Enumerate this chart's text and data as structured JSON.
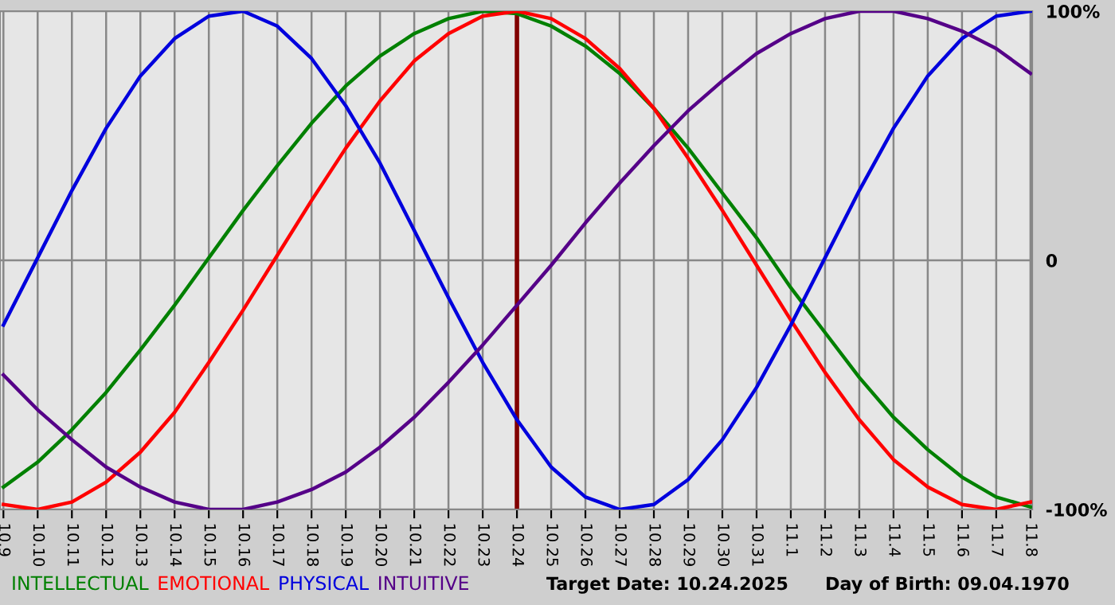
{
  "chart_data": {
    "type": "line",
    "categories": [
      "10.9",
      "10.10",
      "10.11",
      "10.12",
      "10.13",
      "10.14",
      "10.15",
      "10.16",
      "10.17",
      "10.18",
      "10.19",
      "10.20",
      "10.21",
      "10.22",
      "10.23",
      "10.24",
      "10.25",
      "10.26",
      "10.27",
      "10.28",
      "10.29",
      "10.30",
      "10.31",
      "11.1",
      "11.2",
      "11.3",
      "11.4",
      "11.5",
      "11.6",
      "11.7",
      "11.8"
    ],
    "series": [
      {
        "name": "INTELLECTUAL",
        "color": "#008000",
        "values": [
          -91,
          -81,
          -68,
          -53,
          -36,
          -18,
          1,
          20,
          38,
          55,
          70,
          82,
          91,
          97,
          100,
          99,
          94,
          86,
          75,
          61,
          45,
          27,
          9,
          -11,
          -29,
          -47,
          -63,
          -76,
          -87,
          -95,
          -99
        ]
      },
      {
        "name": "EMOTIONAL",
        "color": "#ff0000",
        "values": [
          -98,
          -100,
          -97,
          -89,
          -77,
          -61,
          -41,
          -20,
          2,
          24,
          45,
          64,
          80,
          91,
          98,
          100,
          97,
          89,
          77,
          61,
          41,
          20,
          -2,
          -24,
          -45,
          -64,
          -80,
          -91,
          -98,
          -100,
          -97
        ]
      },
      {
        "name": "PHYSICAL",
        "color": "#0000dd",
        "values": [
          -26,
          1,
          28,
          53,
          74,
          89,
          98,
          100,
          94,
          81,
          62,
          39,
          12,
          -15,
          -41,
          -64,
          -83,
          -95,
          -100,
          -98,
          -88,
          -72,
          -51,
          -26,
          1,
          28,
          53,
          74,
          89,
          98,
          100
        ]
      },
      {
        "name": "INTUITIVE",
        "color": "#550088",
        "values": [
          -46,
          -60,
          -72,
          -83,
          -91,
          -97,
          -100,
          -100,
          -97,
          -92,
          -85,
          -75,
          -63,
          -49,
          -34,
          -18,
          -2,
          15,
          31,
          46,
          60,
          72,
          83,
          91,
          97,
          100,
          100,
          97,
          92,
          85,
          75
        ]
      }
    ],
    "ylim": [
      -100,
      100
    ],
    "yticks": [
      {
        "value": 100,
        "label": "100%"
      },
      0,
      {
        "value": -100,
        "label": "-100%"
      }
    ],
    "ref_lines": [
      {
        "axis": "x",
        "value": "10.24",
        "color": "#800000"
      }
    ],
    "annotations": [
      "Target Date: 10.24.2025",
      "Day of Birth: 09.04.1970"
    ],
    "grid": true,
    "legend": "bottom left",
    "marker": "none",
    "line_style": "solid"
  }
}
